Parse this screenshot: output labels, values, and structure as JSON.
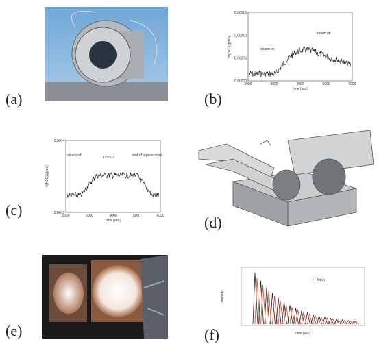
{
  "panels": [
    {
      "label": "(a)"
    },
    {
      "label": "(b)",
      "y_label": "m[H2O]/g[zeo]",
      "x_label": "time [sec]",
      "annotations": [
        "steam on",
        "steam off"
      ],
      "xticks": [
        "2000",
        "3000",
        "4000",
        "5000",
        "6000"
      ],
      "yticks": [
        "0,00015",
        "0,00010",
        "0,00005",
        "0,00000"
      ]
    },
    {
      "label": "(c)",
      "y_label": "m[H2O]/g[zeo]",
      "x_label": "time [sec]",
      "annotations": [
        "steam off",
        "x25/TG",
        "end of regeneration"
      ],
      "xticks": [
        "2000",
        "3000",
        "4000",
        "5000",
        "6000"
      ],
      "yticks": [
        "0,0004",
        "0,0002"
      ]
    },
    {
      "label": "(d)"
    },
    {
      "label": "(e)"
    },
    {
      "label": "(f)",
      "x_label": "time [sec]",
      "y_label": "intensity",
      "annotations": [
        "1 - Ad(s)"
      ]
    }
  ]
}
